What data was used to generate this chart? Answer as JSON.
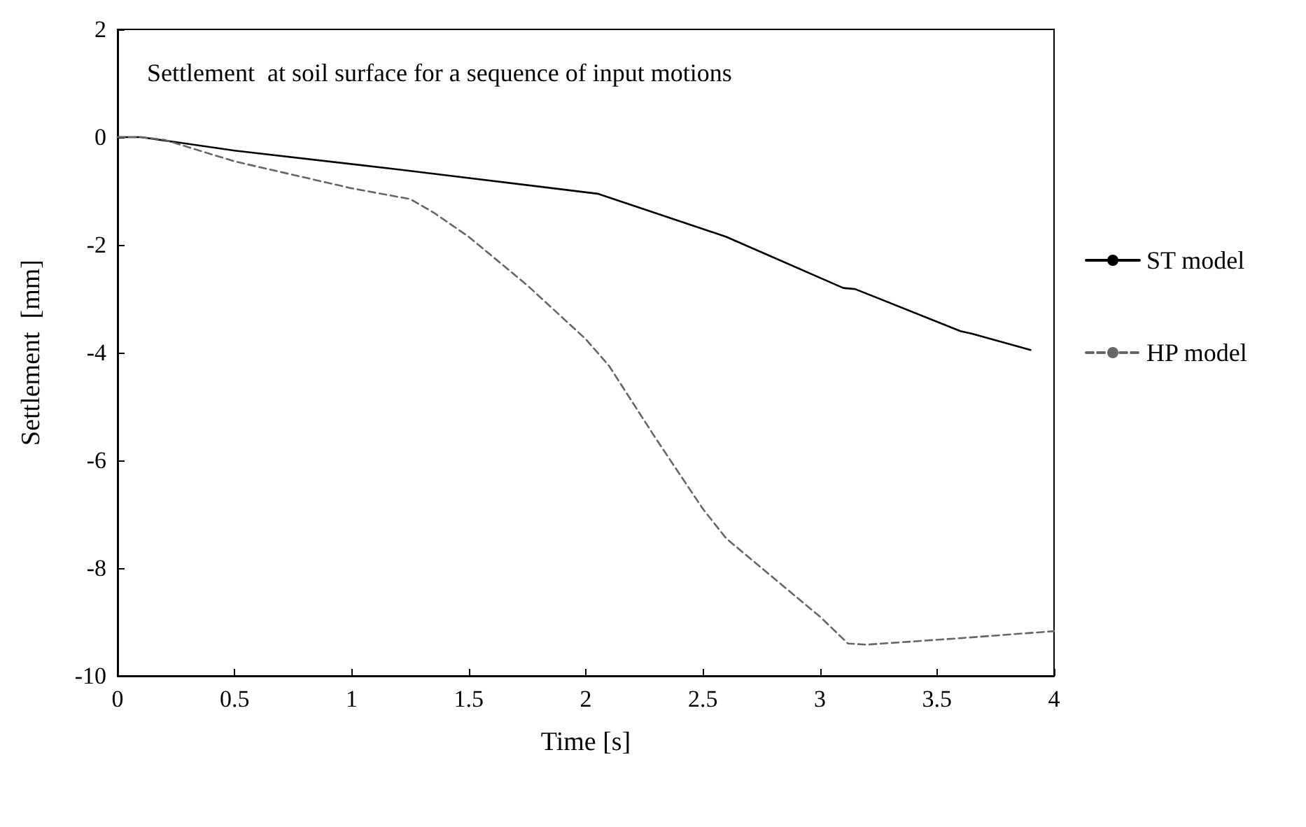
{
  "chart_data": {
    "type": "line",
    "title": "Settlement  at soil surface for a sequence of input motions",
    "xlabel": "Time [s]",
    "ylabel": "Settlement  [mm]",
    "xlim": [
      0,
      4
    ],
    "xticks": [
      0,
      0.5,
      1,
      1.5,
      2,
      2.5,
      3,
      3.5,
      4
    ],
    "ylim": [
      -10,
      2
    ],
    "yticks": [
      -10,
      -8,
      -6,
      -4,
      -2,
      0,
      2
    ],
    "grid": false,
    "legend": "right",
    "marker": "none",
    "series": [
      {
        "name": "ST model",
        "color": "#000000",
        "line_style": "solid",
        "x": [
          0,
          0.1,
          0.5,
          1.2,
          2.05,
          2.6,
          3.1,
          3.15,
          3.6,
          3.65,
          3.9
        ],
        "values": [
          0,
          0,
          -0.25,
          -0.6,
          -1.05,
          -1.85,
          -2.8,
          -2.82,
          -3.6,
          -3.65,
          -3.95
        ]
      },
      {
        "name": "HP model",
        "color": "#666666",
        "line_style": "dashed",
        "x": [
          0,
          0.1,
          0.2,
          0.5,
          1.0,
          1.25,
          1.35,
          1.5,
          1.75,
          2.0,
          2.1,
          2.3,
          2.5,
          2.6,
          3.0,
          3.12,
          3.2,
          3.6,
          4.0
        ],
        "values": [
          0,
          0,
          -0.05,
          -0.45,
          -0.95,
          -1.15,
          -1.4,
          -1.85,
          -2.75,
          -3.75,
          -4.25,
          -5.6,
          -6.9,
          -7.45,
          -8.9,
          -9.4,
          -9.42,
          -9.3,
          -9.17
        ]
      }
    ]
  }
}
